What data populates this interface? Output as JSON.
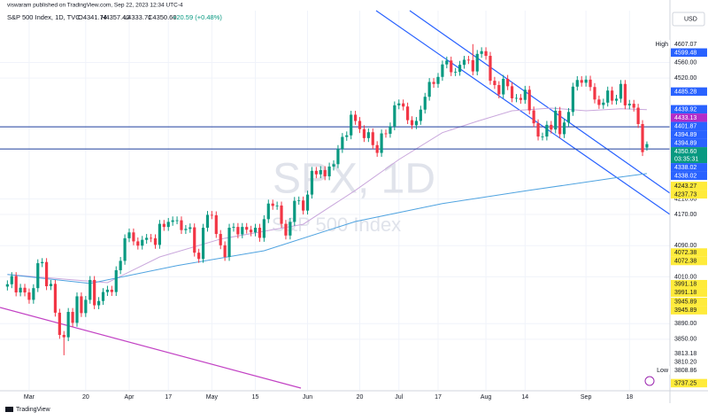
{
  "header": {
    "published": "viswaram published on TradingView.com, Sep 22, 2023 12:34 UTC-4",
    "symbol": "S&P 500 Index, 1D, TVC",
    "open": "O4341.74",
    "high": "H4357.40",
    "low": "L4333.71",
    "close": "C4350.60",
    "change": "+20.59 (+0.48%)",
    "currency": "USD",
    "watermark": "SPX, 1D",
    "watermark_sub": "S&P 500 Index",
    "footer": "TradingView"
  },
  "chart_data": {
    "type": "candlestick",
    "up_color": "#089981",
    "down_color": "#f23645",
    "xlim": [
      -1.7,
      152.3
    ],
    "ylim": [
      3720,
      4693
    ],
    "grid": true,
    "xticks": [
      {
        "value": 5,
        "label": "Mar"
      },
      {
        "value": 18,
        "label": "20"
      },
      {
        "value": 28,
        "label": "Apr"
      },
      {
        "value": 37,
        "label": "17"
      },
      {
        "value": 47,
        "label": "May"
      },
      {
        "value": 57,
        "label": "15"
      },
      {
        "value": 69,
        "label": "Jun"
      },
      {
        "value": 81,
        "label": "20"
      },
      {
        "value": 90,
        "label": "Jul"
      },
      {
        "value": 99,
        "label": "17"
      },
      {
        "value": 110,
        "label": "Aug"
      },
      {
        "value": 119,
        "label": "14"
      },
      {
        "value": 133,
        "label": "Sep"
      },
      {
        "value": 143,
        "label": "18"
      }
    ],
    "yticks": [
      {
        "value": 3850,
        "label": "3850.00"
      },
      {
        "value": 3890,
        "label": "3890.00"
      },
      {
        "value": 4010,
        "label": "4010.00"
      },
      {
        "value": 4090,
        "label": "4090.00"
      },
      {
        "value": 4170,
        "label": "4170.00"
      },
      {
        "value": 4210,
        "label": "4210.00"
      },
      {
        "value": 4520,
        "label": "4520.00"
      },
      {
        "value": 4560,
        "label": "4560.00"
      }
    ],
    "open": [
      3985,
      3991,
      4012,
      3970,
      3982,
      3970,
      3951,
      3981,
      4045,
      4048,
      3986,
      3992,
      3918,
      3861,
      3855,
      3920,
      3892,
      3960,
      3917,
      3951,
      4002,
      3937,
      3948,
      3971,
      3977,
      3971,
      4027,
      4051,
      4109,
      4124,
      4101,
      4090,
      4105,
      4110,
      4109,
      4092,
      4146,
      4138,
      4151,
      4155,
      4155,
      4130,
      4133,
      4137,
      4072,
      4056,
      4136,
      4169,
      4168,
      4120,
      4091,
      4061,
      4136,
      4138,
      4119,
      4138,
      4131,
      4124,
      4136,
      4110,
      4158,
      4198,
      4192,
      4193,
      4146,
      4116,
      4151,
      4205,
      4206,
      4180,
      4221,
      4282,
      4273,
      4284,
      4268,
      4293,
      4299,
      4338,
      4369,
      4373,
      4426,
      4410,
      4389,
      4366,
      4381,
      4348,
      4328,
      4378,
      4377,
      4396,
      4450,
      4455,
      4447,
      4412,
      4399,
      4410,
      4439,
      4472,
      4510,
      4505,
      4523,
      4555,
      4565,
      4535,
      4536,
      4554,
      4567,
      4566,
      4537,
      4582,
      4589,
      4577,
      4513,
      4502,
      4478,
      4518,
      4499,
      4468,
      4469,
      4464,
      4490,
      4437,
      4404,
      4370,
      4370,
      4400,
      4388,
      4436,
      4376,
      4406,
      4433,
      4498,
      4515,
      4508,
      4516,
      4497,
      4465,
      4451,
      4457,
      4488,
      4462,
      4467,
      4505,
      4450,
      4454,
      4444,
      4402,
      4341.74
    ],
    "high": [
      4001,
      4022,
      4022,
      3992,
      3992,
      3980,
      3991,
      4055,
      4058,
      4058,
      4002,
      4002,
      3928,
      3871,
      3930,
      3930,
      3970,
      3970,
      3961,
      4012,
      4012,
      3958,
      3981,
      3987,
      3987,
      4037,
      4061,
      4119,
      4134,
      4134,
      4111,
      4115,
      4120,
      4120,
      4119,
      4156,
      4156,
      4161,
      4165,
      4165,
      4165,
      4143,
      4147,
      4147,
      4082,
      4146,
      4179,
      4179,
      4178,
      4130,
      4101,
      4146,
      4148,
      4148,
      4148,
      4148,
      4141,
      4146,
      4146,
      4168,
      4208,
      4208,
      4203,
      4203,
      4156,
      4161,
      4215,
      4216,
      4216,
      4231,
      4292,
      4292,
      4294,
      4294,
      4303,
      4309,
      4348,
      4379,
      4383,
      4436,
      4436,
      4420,
      4399,
      4391,
      4391,
      4358,
      4388,
      4388,
      4406,
      4460,
      4465,
      4465,
      4457,
      4422,
      4420,
      4449,
      4482,
      4520,
      4520,
      4533,
      4565,
      4575,
      4575,
      4546,
      4564,
      4577,
      4577,
      4607.07,
      4592,
      4599,
      4599,
      4587,
      4523,
      4512,
      4528,
      4528,
      4509,
      4479,
      4479,
      4500,
      4500,
      4447,
      4414,
      4380,
      4410,
      4410,
      4446,
      4446,
      4416,
      4443,
      4508,
      4525,
      4525,
      4526,
      4526,
      4507,
      4475,
      4467,
      4498,
      4498,
      4477,
      4515,
      4515,
      4464,
      4464,
      4454,
      4412,
      4357.4
    ],
    "low": [
      3975,
      3981,
      3960,
      3960,
      3960,
      3941,
      3941,
      3971,
      4035,
      3976,
      3976,
      3908,
      3851,
      3808.86,
      3845,
      3882,
      3882,
      3907,
      3907,
      3941,
      3927,
      3927,
      3938,
      3961,
      3961,
      3961,
      4017,
      4041,
      4099,
      4091,
      4080,
      4080,
      4095,
      4099,
      4082,
      4082,
      4128,
      4128,
      4141,
      4145,
      4120,
      4120,
      4123,
      4062,
      4046,
      4046,
      4126,
      4158,
      4110,
      4081,
      4051,
      4051,
      4126,
      4109,
      4109,
      4121,
      4114,
      4114,
      4100,
      4100,
      4148,
      4182,
      4182,
      4136,
      4106,
      4106,
      4141,
      4195,
      4170,
      4170,
      4211,
      4263,
      4263,
      4258,
      4258,
      4283,
      4289,
      4328,
      4359,
      4363,
      4400,
      4379,
      4356,
      4356,
      4338,
      4318,
      4318,
      4367,
      4367,
      4386,
      4440,
      4437,
      4402,
      4389,
      4389,
      4400,
      4429,
      4462,
      4495,
      4495,
      4513,
      4545,
      4525,
      4525,
      4526,
      4544,
      4556,
      4527,
      4527,
      4572,
      4567,
      4503,
      4492,
      4468,
      4468,
      4489,
      4458,
      4458,
      4454,
      4454,
      4427,
      4394,
      4360,
      4360,
      4360,
      4378,
      4378,
      4366,
      4366,
      4396,
      4423,
      4488,
      4498,
      4498,
      4487,
      4455,
      4441,
      4441,
      4447,
      4452,
      4452,
      4457,
      4440,
      4440,
      4434,
      4392,
      4320,
      4333.71
    ],
    "close": [
      3991,
      4012,
      3970,
      3982,
      3970,
      3951,
      3981,
      4045,
      4048,
      3986,
      3992,
      3918,
      3861,
      3855,
      3920,
      3892,
      3960,
      3917,
      3951,
      4002,
      3937,
      3948,
      3971,
      3977,
      3971,
      4027,
      4051,
      4109,
      4124,
      4101,
      4090,
      4105,
      4110,
      4109,
      4092,
      4146,
      4138,
      4151,
      4155,
      4155,
      4130,
      4133,
      4137,
      4072,
      4056,
      4136,
      4169,
      4168,
      4120,
      4091,
      4061,
      4136,
      4138,
      4119,
      4138,
      4131,
      4124,
      4136,
      4110,
      4158,
      4198,
      4192,
      4193,
      4146,
      4116,
      4151,
      4205,
      4206,
      4180,
      4221,
      4282,
      4273,
      4284,
      4268,
      4293,
      4299,
      4338,
      4369,
      4373,
      4426,
      4410,
      4389,
      4366,
      4381,
      4348,
      4328,
      4378,
      4377,
      4396,
      4450,
      4455,
      4447,
      4412,
      4399,
      4410,
      4439,
      4472,
      4510,
      4505,
      4523,
      4555,
      4565,
      4535,
      4536,
      4554,
      4567,
      4566,
      4537,
      4582,
      4589,
      4577,
      4513,
      4502,
      4478,
      4518,
      4499,
      4468,
      4469,
      4464,
      4490,
      4437,
      4404,
      4370,
      4370,
      4400,
      4388,
      4436,
      4376,
      4406,
      4433,
      4498,
      4515,
      4508,
      4516,
      4497,
      4465,
      4451,
      4457,
      4488,
      4462,
      4467,
      4505,
      4450,
      4454,
      4444,
      4402,
      4330,
      4350.6
    ],
    "overlays": [
      {
        "color": "#c9a7dc",
        "x": [
          0,
          23,
          35,
          49,
          68,
          80,
          90,
          100,
          108,
          116,
          125,
          133,
          141,
          147
        ],
        "values": [
          4016,
          3995,
          4061,
          4107,
          4145,
          4232,
          4311,
          4380,
          4409,
          4436,
          4443,
          4436,
          4441,
          4439
        ]
      },
      {
        "color": "#4fa3e0",
        "x": [
          0,
          19,
          39,
          59,
          80,
          100,
          120,
          141,
          147
        ],
        "values": [
          4016,
          3993,
          4039,
          4077,
          4152,
          4198,
          4232,
          4266,
          4275
        ]
      }
    ],
    "price_badges": [
      {
        "value": 4607.07,
        "color": "#ffffff",
        "text_color": "#131722",
        "tag": "High"
      },
      {
        "value": 4599.48,
        "color": "#2962ff",
        "text_color": "#ffffff"
      },
      {
        "value": 4485.28,
        "color": "#2962ff",
        "text_color": "#ffffff"
      },
      {
        "value": 4439.92,
        "color": "#2962ff",
        "text_color": "#ffffff"
      },
      {
        "value": 4433.13,
        "color": "#b22cc9",
        "text_color": "#ffffff"
      },
      {
        "value": 4401.87,
        "color": "#2962ff",
        "text_color": "#ffffff"
      },
      {
        "value": 4394.89,
        "color": "#2962ff",
        "text_color": "#ffffff",
        "line": true
      },
      {
        "value": 4394.89,
        "color": "#2962ff",
        "text_color": "#ffffff"
      },
      {
        "value": 4350.6,
        "label": "4350.60",
        "color": "#089981",
        "text_color": "#ffffff",
        "countdown": "03:35:31"
      },
      {
        "value": 4338.02,
        "color": "#2962ff",
        "text_color": "#ffffff",
        "line": true
      },
      {
        "value": 4338.02,
        "color": "#2962ff",
        "text_color": "#ffffff"
      },
      {
        "value": 4243.27,
        "color": "#ffeb3b",
        "text_color": "#131722"
      },
      {
        "value": 4237.73,
        "color": "#ffeb3b",
        "text_color": "#131722"
      },
      {
        "value": 4072.38,
        "color": "#ffeb3b",
        "text_color": "#131722"
      },
      {
        "value": 4072.38,
        "color": "#ffeb3b",
        "text_color": "#131722"
      },
      {
        "value": 3991.18,
        "color": "#ffeb3b",
        "text_color": "#131722"
      },
      {
        "value": 3991.18,
        "color": "#ffeb3b",
        "text_color": "#131722"
      },
      {
        "value": 3945.89,
        "color": "#ffeb3b",
        "text_color": "#131722"
      },
      {
        "value": 3945.89,
        "color": "#ffeb3b",
        "text_color": "#131722"
      },
      {
        "value": 3813.18,
        "color": "#ffffff",
        "text_color": "#131722"
      },
      {
        "value": 3810.2,
        "label": "3810.20",
        "color": "#ffffff",
        "text_color": "#131722"
      },
      {
        "value": 3808.86,
        "color": "#ffffff",
        "text_color": "#131722",
        "tag": "Low"
      },
      {
        "value": 3737.25,
        "color": "#ffeb3b",
        "text_color": "#131722"
      }
    ]
  }
}
